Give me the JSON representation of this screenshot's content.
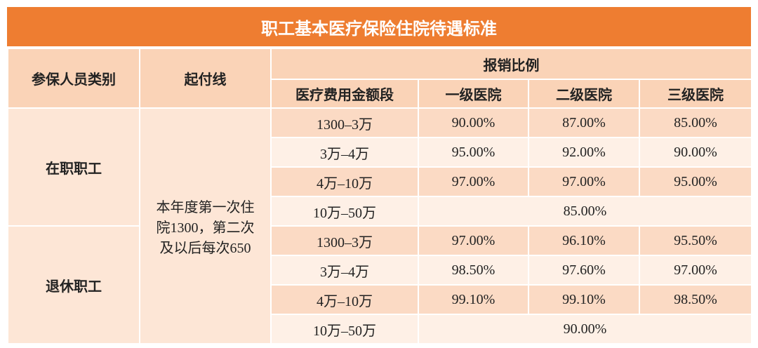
{
  "title": "职工基本医疗保险住院待遇标准",
  "header": {
    "category": "参保人员类别",
    "threshold": "起付线",
    "ratio": "报销比例",
    "columns": [
      "医疗费用金额段",
      "一级医院",
      "二级医院",
      "三级医院"
    ]
  },
  "threshold_lines": [
    "本年度第一次住",
    "院1300，第二次",
    "及以后每次650"
  ],
  "groups": [
    {
      "category": "在职职工",
      "rows": [
        [
          "1300–3万",
          "90.00%",
          "87.00%",
          "85.00%"
        ],
        [
          "3万–4万",
          "95.00%",
          "92.00%",
          "90.00%"
        ],
        [
          "4万–10万",
          "97.00%",
          "97.00%",
          "95.00%"
        ],
        [
          "10万–50万",
          "85.00%"
        ]
      ]
    },
    {
      "category": "退休职工",
      "rows": [
        [
          "1300–3万",
          "97.00%",
          "96.10%",
          "95.50%"
        ],
        [
          "3万–4万",
          "98.50%",
          "97.60%",
          "97.00%"
        ],
        [
          "4万–10万",
          "99.10%",
          "99.10%",
          "98.50%"
        ],
        [
          "10万–50万",
          "90.00%"
        ]
      ]
    }
  ]
}
